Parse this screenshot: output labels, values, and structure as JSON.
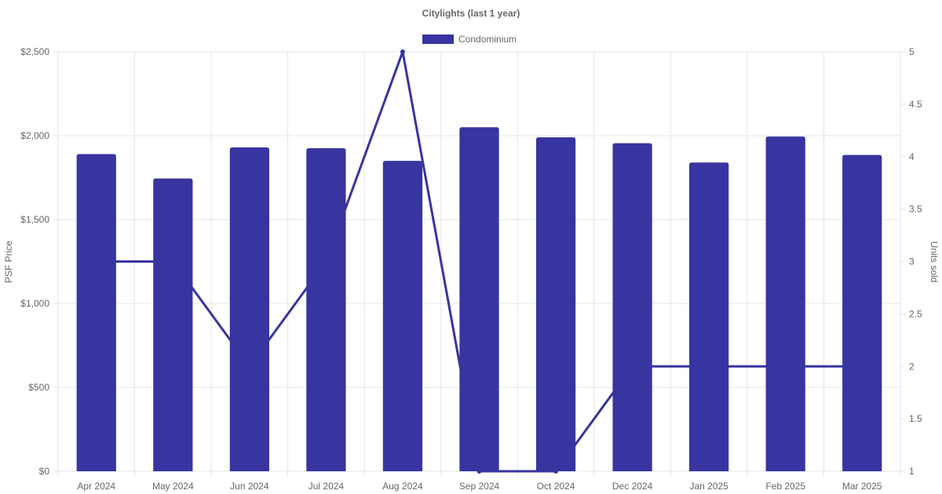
{
  "chart_data": {
    "type": "bar",
    "title": "Citylights (last 1 year)",
    "categories": [
      "Apr 2024",
      "May 2024",
      "Jun 2024",
      "Jul 2024",
      "Aug 2024",
      "Sep 2024",
      "Oct 2024",
      "Dec 2024",
      "Jan 2025",
      "Feb 2025",
      "Mar 2025"
    ],
    "series": [
      {
        "name": "Condominium",
        "type": "bar",
        "axis": "left",
        "values": [
          1890,
          1745,
          1930,
          1925,
          1850,
          2050,
          1990,
          1955,
          1840,
          1995,
          1885
        ],
        "color": "#3834a0"
      },
      {
        "type": "line",
        "axis": "right",
        "values": [
          3,
          3,
          2,
          3,
          5,
          1,
          1,
          2,
          2,
          2,
          2
        ],
        "color": "#3834a0"
      }
    ],
    "left_axis": {
      "label": "PSF Price",
      "ylim": [
        0,
        2500
      ],
      "ticks": [
        {
          "value": 0,
          "label": "$0"
        },
        {
          "value": 500,
          "label": "$500"
        },
        {
          "value": 1000,
          "label": "$1,000"
        },
        {
          "value": 1500,
          "label": "$1,500"
        },
        {
          "value": 2000,
          "label": "$2,000"
        },
        {
          "value": 2500,
          "label": "$2,500"
        }
      ]
    },
    "right_axis": {
      "label": "Units sold",
      "ylim": [
        1,
        5
      ],
      "ticks": [
        {
          "value": 1,
          "label": "1"
        },
        {
          "value": 1.5,
          "label": "1.5"
        },
        {
          "value": 2,
          "label": "2"
        },
        {
          "value": 2.5,
          "label": "2.5"
        },
        {
          "value": 3,
          "label": "3"
        },
        {
          "value": 3.5,
          "label": "3.5"
        },
        {
          "value": 4,
          "label": "4"
        },
        {
          "value": 4.5,
          "label": "4.5"
        },
        {
          "value": 5,
          "label": "5"
        }
      ]
    },
    "grid": true,
    "legend": {
      "position": "top",
      "entries": [
        "Condominium"
      ]
    }
  }
}
